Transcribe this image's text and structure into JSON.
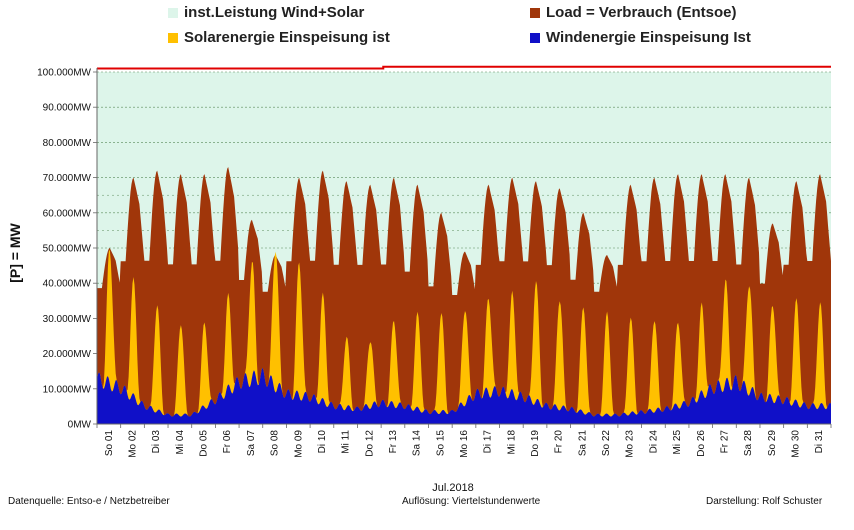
{
  "legend": {
    "capacity": {
      "label": "inst.Leistung Wind+Solar",
      "color": "#DDF5EA"
    },
    "load": {
      "label": "Load =  Verbrauch (Entsoe)",
      "color": "#A0360A"
    },
    "solar": {
      "label": "Solarenergie Einspeisung ist",
      "color": "#FFC000"
    },
    "wind": {
      "label": "Windenergie Einspeisung Ist",
      "color": "#1010C8"
    }
  },
  "footer": {
    "source": "Datenquelle: Entso-e  / Netzbetreiber",
    "resolution": "Auflösung: Viertelstundenwerte",
    "author": "Darstellung: Rolf Schuster"
  },
  "chart_data": {
    "type": "area",
    "xlabel": "Jul.2018",
    "ylabel": "[P] = MW",
    "ylim": [
      0,
      100000
    ],
    "y_ticks": [
      "0MW",
      "10.000MW",
      "20.000MW",
      "30.000MW",
      "40.000MW",
      "50.000MW",
      "60.000MW",
      "70.000MW",
      "80.000MW",
      "90.000MW",
      "100.000MW"
    ],
    "categories": [
      "So 01",
      "Mo 02",
      "Di 03",
      "Mi 04",
      "Do 05",
      "Fr 06",
      "Sa 07",
      "So 08",
      "Mo 09",
      "Di 10",
      "Mi 11",
      "Do 12",
      "Fr 13",
      "Sa 14",
      "So 15",
      "Mo 16",
      "Di 17",
      "Mi 18",
      "Do 19",
      "Fr 20",
      "Sa 21",
      "So 22",
      "Mo 23",
      "Di 24",
      "Mi 25",
      "Do 26",
      "Fr 27",
      "Sa 28",
      "So 29",
      "Mo 30",
      "Di 31"
    ],
    "series": [
      {
        "name": "Load =  Verbrauch (Entsoe)",
        "peak": [
          50000,
          70000,
          72000,
          71000,
          71000,
          73000,
          58000,
          48000,
          70000,
          72000,
          69000,
          68000,
          70000,
          68000,
          60000,
          49000,
          68000,
          70000,
          69000,
          67000,
          60000,
          48000,
          68000,
          70000,
          71000,
          71000,
          71000,
          70000,
          57000,
          69000,
          71000
        ],
        "trough": [
          38000,
          45000,
          45000,
          44000,
          44000,
          45000,
          40000,
          37000,
          45000,
          45000,
          44000,
          44000,
          44000,
          42000,
          38000,
          36000,
          44000,
          45000,
          45000,
          44000,
          40000,
          37000,
          44000,
          45000,
          45000,
          45000,
          45000,
          44000,
          39000,
          44000,
          45000
        ]
      },
      {
        "name": "Solarenergie Einspeisung ist",
        "values": [
          38000,
          33000,
          30000,
          26000,
          24000,
          26000,
          33000,
          40000,
          38000,
          30000,
          20000,
          19000,
          24000,
          27000,
          28000,
          27000,
          27000,
          28000,
          34000,
          31000,
          30000,
          29000,
          27000,
          26000,
          24000,
          25000,
          29000,
          31000,
          27000,
          29000,
          29000
        ]
      },
      {
        "name": "Windenergie Einspeisung Ist",
        "values": [
          15000,
          12000,
          6000,
          3000,
          3000,
          8000,
          14000,
          16000,
          10000,
          9000,
          6000,
          5000,
          7000,
          6000,
          4000,
          4000,
          10000,
          11000,
          9000,
          6000,
          5000,
          3000,
          3000,
          4000,
          5000,
          7000,
          12000,
          14000,
          9000,
          8000,
          6000
        ]
      },
      {
        "name": "inst.Leistung Wind+Solar",
        "values_start_end": [
          101000,
          101500
        ]
      }
    ]
  }
}
